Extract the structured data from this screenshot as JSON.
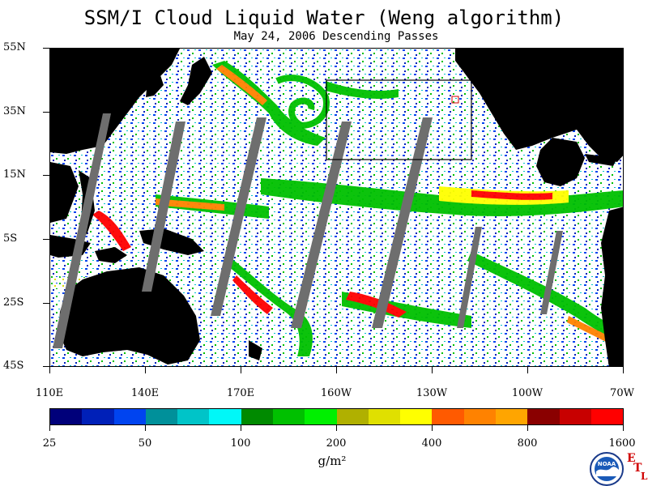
{
  "title": "SSM/I Cloud Liquid Water (Weng algorithm)",
  "subtitle": "May 24, 2006  Descending Passes",
  "lat_labels": [
    "55N",
    "35N",
    "15N",
    "5S",
    "25S",
    "45S"
  ],
  "lon_labels": [
    "110E",
    "140E",
    "170E",
    "160W",
    "130W",
    "100W",
    "70W"
  ],
  "colorbar": {
    "colors": [
      "#00007a",
      "#0020b8",
      "#0044f0",
      "#00909a",
      "#00c4c8",
      "#00f8f8",
      "#008a00",
      "#00c000",
      "#00f000",
      "#b0b000",
      "#e0e000",
      "#ffff00",
      "#ff5a00",
      "#ff8200",
      "#ffa500",
      "#8a0000",
      "#c80000",
      "#ff0000"
    ],
    "labels": [
      "25",
      "50",
      "100",
      "200",
      "400",
      "800",
      "1600"
    ],
    "units": "g/m²"
  },
  "logo": {
    "name": "NOAA",
    "text": "NOAA"
  },
  "etl": {
    "e": "E",
    "t": "T",
    "l": "L"
  }
}
